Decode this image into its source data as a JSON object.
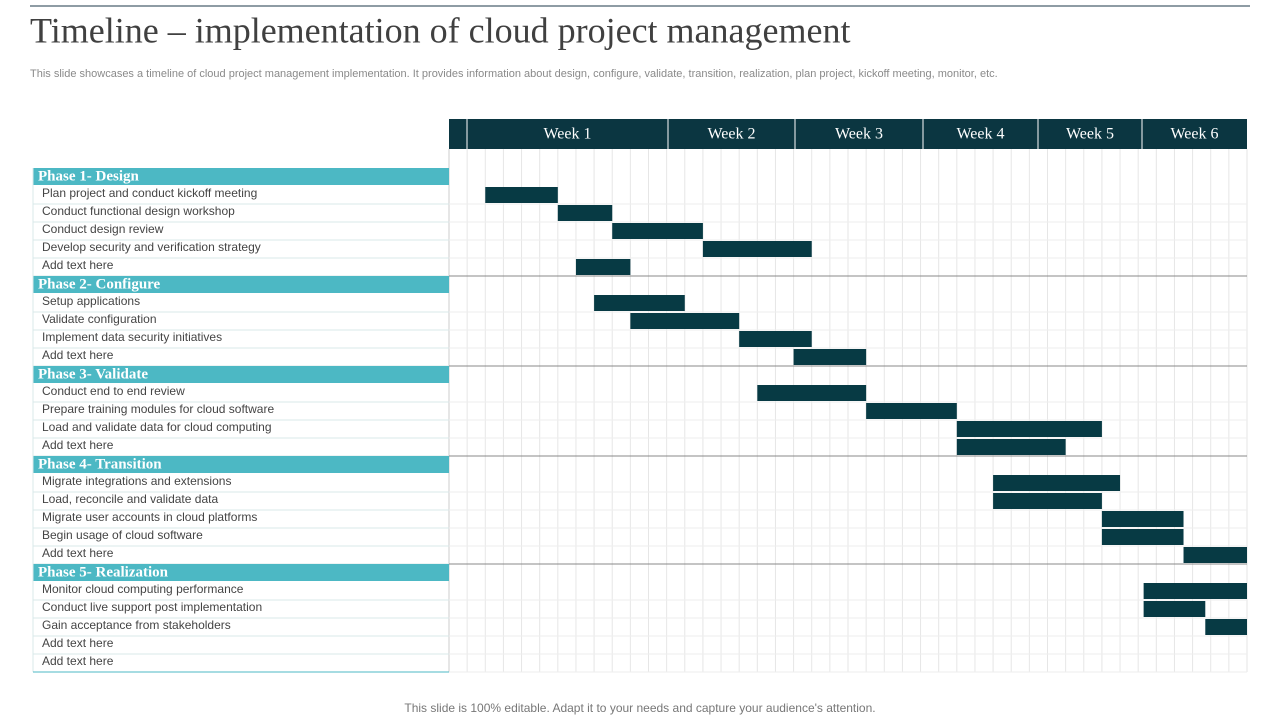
{
  "title": "Timeline – implementation of cloud project management",
  "subtitle": "This slide showcases a timeline of cloud project management implementation. It provides information about design, configure, validate, transition, realization, plan project, kickoff meeting, monitor, etc.",
  "footer": "This slide is 100% editable. Adapt it to your needs and capture your audience's attention.",
  "weeks": [
    "Week 1",
    "Week 2",
    "Week 3",
    "Week 4",
    "Week 5",
    "Week 6"
  ],
  "phases": [
    {
      "name": "Phase 1- Design",
      "tasks": [
        {
          "label": "Plan project and conduct kickoff meeting",
          "start": 2,
          "end": 6
        },
        {
          "label": "Conduct functional design workshop",
          "start": 6,
          "end": 9
        },
        {
          "label": "Conduct design review",
          "start": 9,
          "end": 14
        },
        {
          "label": "Develop security and verification strategy",
          "start": 14,
          "end": 20
        },
        {
          "label": "Add text here",
          "start": 7,
          "end": 10
        }
      ]
    },
    {
      "name": "Phase 2- Configure",
      "tasks": [
        {
          "label": "Setup applications",
          "start": 8,
          "end": 13
        },
        {
          "label": "Validate configuration",
          "start": 10,
          "end": 16
        },
        {
          "label": "Implement data security initiatives",
          "start": 16,
          "end": 20
        },
        {
          "label": "Add text here",
          "start": 19,
          "end": 23
        }
      ]
    },
    {
      "name": "Phase 3- Validate",
      "tasks": [
        {
          "label": "Conduct end to  end review",
          "start": 17,
          "end": 23
        },
        {
          "label": "Prepare training modules for cloud software",
          "start": 23,
          "end": 28
        },
        {
          "label": "Load and validate data for cloud computing",
          "start": 28,
          "end": 36
        },
        {
          "label": "Add text here",
          "start": 28,
          "end": 34
        }
      ]
    },
    {
      "name": "Phase 4- Transition",
      "tasks": [
        {
          "label": "Migrate integrations and extensions",
          "start": 30,
          "end": 37
        },
        {
          "label": "Load, reconcile and validate data",
          "start": 30,
          "end": 36
        },
        {
          "label": "Migrate user accounts in cloud platforms",
          "start": 36,
          "end": 40.5
        },
        {
          "label": "Begin usage of cloud software",
          "start": 36,
          "end": 40.5
        },
        {
          "label": "Add text here",
          "start": 40.5,
          "end": 44
        }
      ]
    },
    {
      "name": "Phase 5- Realization",
      "tasks": [
        {
          "label": "Monitor cloud computing performance",
          "start": 38.3,
          "end": 44
        },
        {
          "label": "Conduct live support post implementation",
          "start": 38.3,
          "end": 41.7
        },
        {
          "label": "Gain acceptance from stakeholders",
          "start": 41.7,
          "end": 44
        },
        {
          "label": "Add text here"
        },
        {
          "label": "Add text here"
        }
      ]
    }
  ]
}
